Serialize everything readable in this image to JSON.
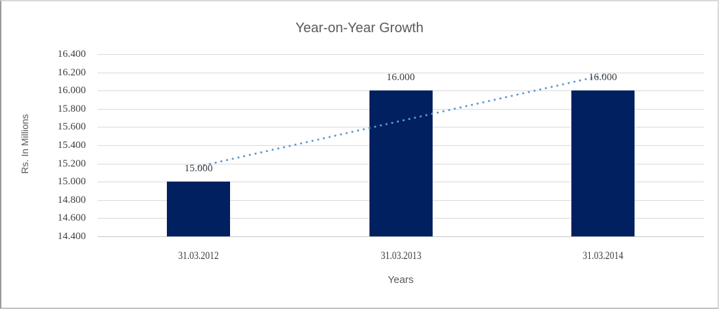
{
  "chart": {
    "title": "Year-on-Year Growth",
    "y_axis_title": "Rs. In Millions",
    "x_axis_title": "Years",
    "y_tick_labels": [
      "16.400",
      "16.200",
      "16.000",
      "15.800",
      "15.600",
      "15.400",
      "15.200",
      "15.000",
      "14.800",
      "14.600",
      "14.400"
    ],
    "x_tick_labels": [
      "31.03.2012",
      "31.03.2013",
      "31.03.2014"
    ],
    "data_labels": [
      "15.000",
      "16.000",
      "16.000"
    ]
  },
  "chart_data": {
    "type": "bar",
    "title": "Year-on-Year Growth",
    "xlabel": "Years",
    "ylabel": "Rs. In Millions",
    "categories": [
      "31.03.2012",
      "31.03.2013",
      "31.03.2014"
    ],
    "values": [
      15.0,
      16.0,
      16.0
    ],
    "ylim": [
      14.4,
      16.4
    ],
    "ytick_step": 0.2,
    "grid": true,
    "legend": false,
    "data_labels_shown": true,
    "trendline": {
      "type": "linear",
      "style": "dotted",
      "start_value": 15.167,
      "end_value": 16.167
    }
  },
  "colors": {
    "bar": "#002060",
    "trendline": "#5b9bd5",
    "gridline": "#d9d9d9",
    "axis_line": "#c6c6c6",
    "title_text": "#595959",
    "tick_text": "#404040"
  }
}
